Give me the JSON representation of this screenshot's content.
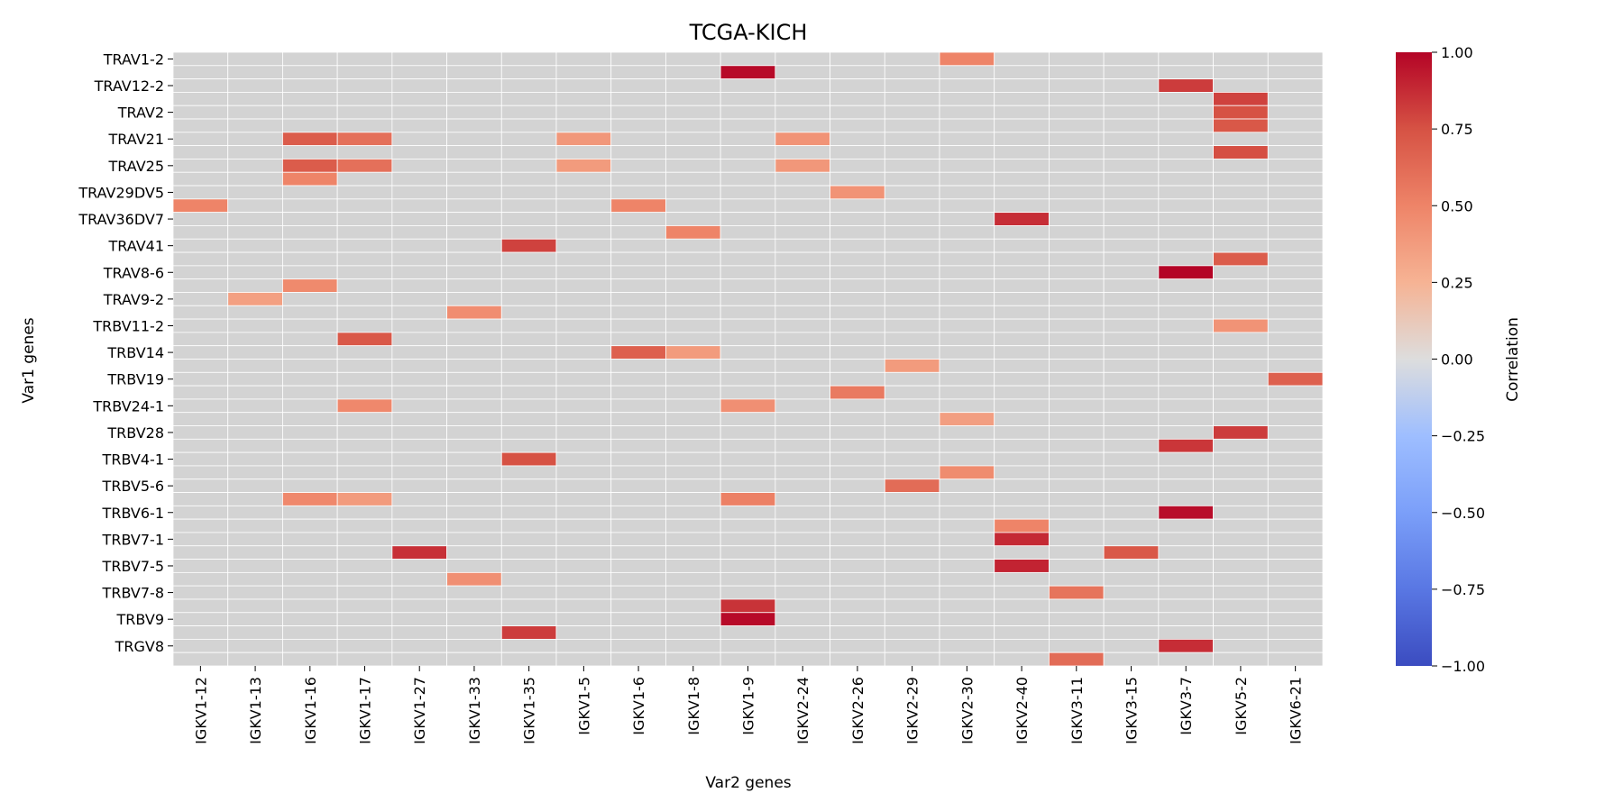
{
  "chart_data": {
    "type": "heatmap",
    "title": "TCGA-KICH",
    "xlabel": "Var2 genes",
    "ylabel": "Var1 genes",
    "colorbar": {
      "label": "Correlation",
      "min": -1,
      "max": 1,
      "ticks": [
        "1.00",
        "0.75",
        "0.50",
        "0.25",
        "0.00",
        "−0.25",
        "−0.50",
        "−0.75",
        "−1.00"
      ],
      "tick_values": [
        1,
        0.75,
        0.5,
        0.25,
        0,
        -0.25,
        -0.5,
        -0.75,
        -1
      ],
      "colormap": "coolwarm"
    },
    "missing_color": "#d3d3d3",
    "x_categories": [
      "IGKV1-12",
      "IGKV1-13",
      "IGKV1-16",
      "IGKV1-17",
      "IGKV1-27",
      "IGKV1-33",
      "IGKV1-35",
      "IGKV1-5",
      "IGKV1-6",
      "IGKV1-8",
      "IGKV1-9",
      "IGKV2-24",
      "IGKV2-26",
      "IGKV2-29",
      "IGKV2-30",
      "IGKV2-40",
      "IGKV3-11",
      "IGKV3-15",
      "IGKV3-7",
      "IGKV5-2",
      "IGKV6-21"
    ],
    "y_row_count": 46,
    "y_tick_labels": [
      {
        "row": 0,
        "label": "TRAV1-2"
      },
      {
        "row": 2,
        "label": "TRAV12-2"
      },
      {
        "row": 4,
        "label": "TRAV2"
      },
      {
        "row": 6,
        "label": "TRAV21"
      },
      {
        "row": 8,
        "label": "TRAV25"
      },
      {
        "row": 10,
        "label": "TRAV29DV5"
      },
      {
        "row": 12,
        "label": "TRAV36DV7"
      },
      {
        "row": 14,
        "label": "TRAV41"
      },
      {
        "row": 16,
        "label": "TRAV8-6"
      },
      {
        "row": 18,
        "label": "TRAV9-2"
      },
      {
        "row": 20,
        "label": "TRBV11-2"
      },
      {
        "row": 22,
        "label": "TRBV14"
      },
      {
        "row": 24,
        "label": "TRBV19"
      },
      {
        "row": 26,
        "label": "TRBV24-1"
      },
      {
        "row": 28,
        "label": "TRBV28"
      },
      {
        "row": 30,
        "label": "TRBV4-1"
      },
      {
        "row": 32,
        "label": "TRBV5-6"
      },
      {
        "row": 34,
        "label": "TRBV6-1"
      },
      {
        "row": 36,
        "label": "TRBV7-1"
      },
      {
        "row": 38,
        "label": "TRBV7-5"
      },
      {
        "row": 40,
        "label": "TRBV7-8"
      },
      {
        "row": 42,
        "label": "TRBV9"
      },
      {
        "row": 44,
        "label": "TRGV8"
      }
    ],
    "cells": [
      {
        "row": 0,
        "col": 14,
        "value": 0.5
      },
      {
        "row": 1,
        "col": 10,
        "value": 0.98
      },
      {
        "row": 2,
        "col": 18,
        "value": 0.82
      },
      {
        "row": 3,
        "col": 19,
        "value": 0.8
      },
      {
        "row": 4,
        "col": 19,
        "value": 0.75
      },
      {
        "row": 5,
        "col": 19,
        "value": 0.72
      },
      {
        "row": 6,
        "col": 2,
        "value": 0.7
      },
      {
        "row": 6,
        "col": 3,
        "value": 0.6
      },
      {
        "row": 6,
        "col": 7,
        "value": 0.4
      },
      {
        "row": 6,
        "col": 11,
        "value": 0.42
      },
      {
        "row": 7,
        "col": 19,
        "value": 0.76
      },
      {
        "row": 8,
        "col": 2,
        "value": 0.7
      },
      {
        "row": 8,
        "col": 3,
        "value": 0.6
      },
      {
        "row": 8,
        "col": 7,
        "value": 0.38
      },
      {
        "row": 8,
        "col": 11,
        "value": 0.4
      },
      {
        "row": 9,
        "col": 2,
        "value": 0.5
      },
      {
        "row": 10,
        "col": 12,
        "value": 0.42
      },
      {
        "row": 11,
        "col": 0,
        "value": 0.5
      },
      {
        "row": 11,
        "col": 8,
        "value": 0.5
      },
      {
        "row": 12,
        "col": 15,
        "value": 0.87
      },
      {
        "row": 13,
        "col": 9,
        "value": 0.5
      },
      {
        "row": 14,
        "col": 6,
        "value": 0.8
      },
      {
        "row": 15,
        "col": 19,
        "value": 0.7
      },
      {
        "row": 16,
        "col": 18,
        "value": 1.0
      },
      {
        "row": 17,
        "col": 2,
        "value": 0.47
      },
      {
        "row": 18,
        "col": 1,
        "value": 0.35
      },
      {
        "row": 19,
        "col": 5,
        "value": 0.45
      },
      {
        "row": 20,
        "col": 19,
        "value": 0.42
      },
      {
        "row": 21,
        "col": 3,
        "value": 0.72
      },
      {
        "row": 22,
        "col": 8,
        "value": 0.68
      },
      {
        "row": 22,
        "col": 9,
        "value": 0.38
      },
      {
        "row": 23,
        "col": 13,
        "value": 0.38
      },
      {
        "row": 24,
        "col": 20,
        "value": 0.68
      },
      {
        "row": 25,
        "col": 12,
        "value": 0.55
      },
      {
        "row": 26,
        "col": 3,
        "value": 0.48
      },
      {
        "row": 26,
        "col": 10,
        "value": 0.44
      },
      {
        "row": 27,
        "col": 14,
        "value": 0.36
      },
      {
        "row": 28,
        "col": 19,
        "value": 0.82
      },
      {
        "row": 29,
        "col": 18,
        "value": 0.84
      },
      {
        "row": 30,
        "col": 6,
        "value": 0.75
      },
      {
        "row": 31,
        "col": 14,
        "value": 0.46
      },
      {
        "row": 32,
        "col": 13,
        "value": 0.62
      },
      {
        "row": 33,
        "col": 2,
        "value": 0.48
      },
      {
        "row": 33,
        "col": 3,
        "value": 0.38
      },
      {
        "row": 33,
        "col": 10,
        "value": 0.52
      },
      {
        "row": 34,
        "col": 18,
        "value": 0.97
      },
      {
        "row": 35,
        "col": 15,
        "value": 0.5
      },
      {
        "row": 36,
        "col": 15,
        "value": 0.88
      },
      {
        "row": 37,
        "col": 4,
        "value": 0.86
      },
      {
        "row": 37,
        "col": 17,
        "value": 0.72
      },
      {
        "row": 38,
        "col": 15,
        "value": 0.9
      },
      {
        "row": 39,
        "col": 5,
        "value": 0.44
      },
      {
        "row": 40,
        "col": 16,
        "value": 0.58
      },
      {
        "row": 41,
        "col": 10,
        "value": 0.85
      },
      {
        "row": 42,
        "col": 10,
        "value": 0.98
      },
      {
        "row": 43,
        "col": 6,
        "value": 0.82
      },
      {
        "row": 44,
        "col": 18,
        "value": 0.87
      },
      {
        "row": 45,
        "col": 16,
        "value": 0.62
      }
    ]
  }
}
